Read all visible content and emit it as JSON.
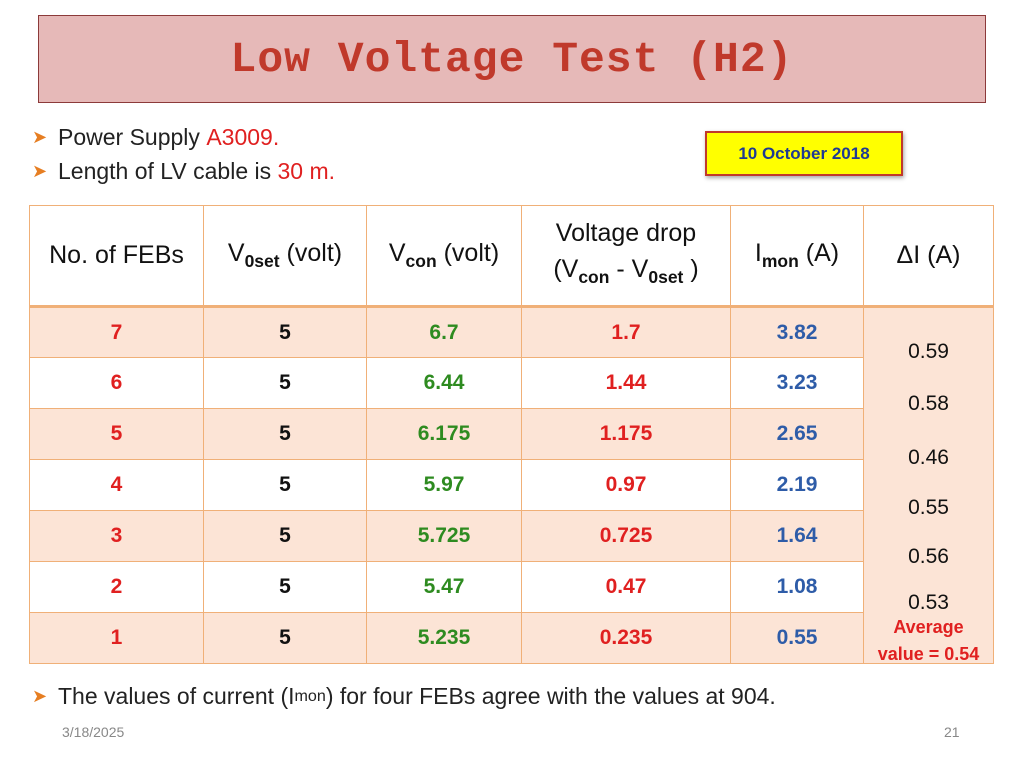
{
  "title": "Low Voltage Test (H2)",
  "bullets": [
    {
      "prefix": "Power Supply ",
      "highlight": "A3009."
    },
    {
      "prefix": "Length of LV cable is ",
      "highlight": "30 m."
    }
  ],
  "date_badge": "10 October 2018",
  "table": {
    "headers": {
      "febs": "No. of FEBs",
      "v0set": {
        "main": "V",
        "sub": "0set",
        "rest": " (volt)"
      },
      "vcon": {
        "main": "V",
        "sub": "con",
        "rest": " (volt)"
      },
      "drop": {
        "line1": "Voltage drop",
        "open": "(V",
        "sub1": "con",
        "mid": " - V",
        "sub2": "0set",
        "close": " )"
      },
      "imon": {
        "main": "I",
        "sub": "mon",
        "rest": " (A)"
      },
      "delta": "ΔI (A)"
    },
    "rows": [
      {
        "febs": "7",
        "v0set": "5",
        "vcon": "6.7",
        "drop": "1.7",
        "imon": "3.82"
      },
      {
        "febs": "6",
        "v0set": "5",
        "vcon": "6.44",
        "drop": "1.44",
        "imon": "3.23"
      },
      {
        "febs": "5",
        "v0set": "5",
        "vcon": "6.175",
        "drop": "1.175",
        "imon": "2.65"
      },
      {
        "febs": "4",
        "v0set": "5",
        "vcon": "5.97",
        "drop": "0.97",
        "imon": "2.19"
      },
      {
        "febs": "3",
        "v0set": "5",
        "vcon": "5.725",
        "drop": "0.725",
        "imon": "1.64"
      },
      {
        "febs": "2",
        "v0set": "5",
        "vcon": "5.47",
        "drop": "0.47",
        "imon": "1.08"
      },
      {
        "febs": "1",
        "v0set": "5",
        "vcon": "5.235",
        "drop": "0.235",
        "imon": "0.55"
      }
    ],
    "deltas": [
      "0.59",
      "0.58",
      "0.46",
      "0.55",
      "0.56",
      "0.53"
    ],
    "average": {
      "line1": "Average",
      "line2": "value = 0.54"
    }
  },
  "footer_note": {
    "prefix": "The values of current (I",
    "sub": "mon",
    "suffix": ") for four FEBs agree with the values at 904."
  },
  "footer_date": "3/18/2025",
  "page_number": "21",
  "colors": {
    "title": "#c0392b",
    "title_bg": "#e6b9b8",
    "accent_red": "#e02020",
    "green": "#2e8b20",
    "blue": "#2e5ca8",
    "badge_bg": "#ffff00"
  }
}
